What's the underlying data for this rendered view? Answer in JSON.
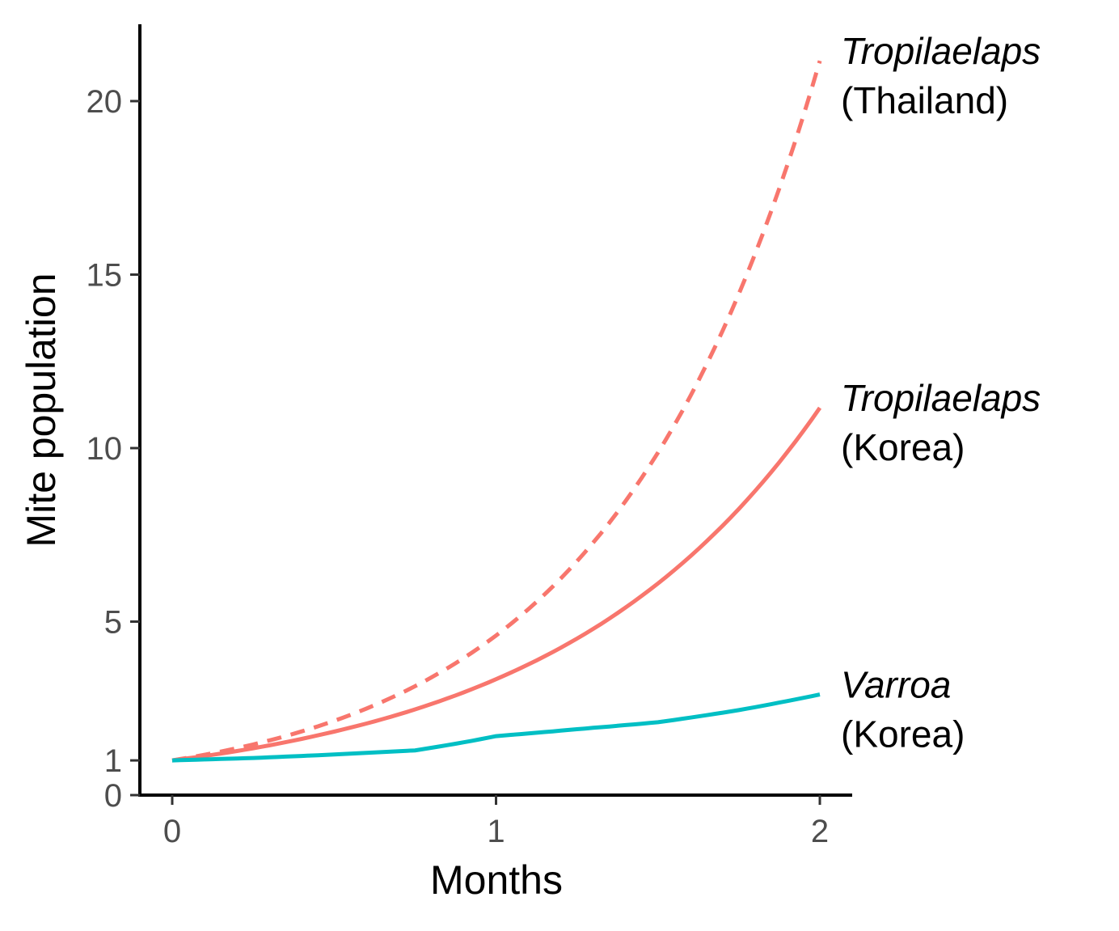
{
  "chart_data": {
    "type": "line",
    "title": "",
    "xlabel": "Months",
    "ylabel": "Mite population",
    "xlim": [
      -0.1,
      2.1
    ],
    "ylim": [
      0,
      22.2
    ],
    "xticks": [
      0,
      1,
      2
    ],
    "yticks": [
      0,
      1,
      5,
      10,
      15,
      20
    ],
    "grid": false,
    "legend": "none",
    "series": [
      {
        "key": "tropilaelaps_thailand",
        "label_line1": "Tropilaelaps",
        "label_line2": "(Thailand)",
        "color": "#F8766D",
        "dash": "dashed",
        "growth_per_month": 4.6,
        "x": [
          0,
          0.25,
          0.5,
          0.75,
          1,
          1.25,
          1.5,
          1.75,
          2
        ],
        "y": [
          1,
          1.46,
          2.14,
          3.14,
          4.6,
          6.74,
          9.87,
          14.45,
          21.16
        ]
      },
      {
        "key": "tropilaelaps_korea",
        "label_line1": "Tropilaelaps",
        "label_line2": "(Korea)",
        "color": "#F8766D",
        "dash": "solid",
        "growth_per_month": 3.34,
        "x": [
          0,
          0.25,
          0.5,
          0.75,
          1,
          1.25,
          1.5,
          1.75,
          2
        ],
        "y": [
          1,
          1.35,
          1.83,
          2.47,
          3.34,
          4.51,
          6.1,
          8.25,
          11.16
        ]
      },
      {
        "key": "varroa_korea",
        "label_line1": "Varroa",
        "label_line2": "(Korea)",
        "color": "#00BFC4",
        "dash": "solid",
        "growth_per_month": 1.7,
        "x": [
          0,
          0.25,
          0.5,
          0.75,
          1,
          1.25,
          1.5,
          1.75,
          2
        ],
        "y": [
          1,
          1.07,
          1.17,
          1.29,
          1.7,
          1.9,
          2.1,
          2.45,
          2.9
        ]
      }
    ]
  }
}
